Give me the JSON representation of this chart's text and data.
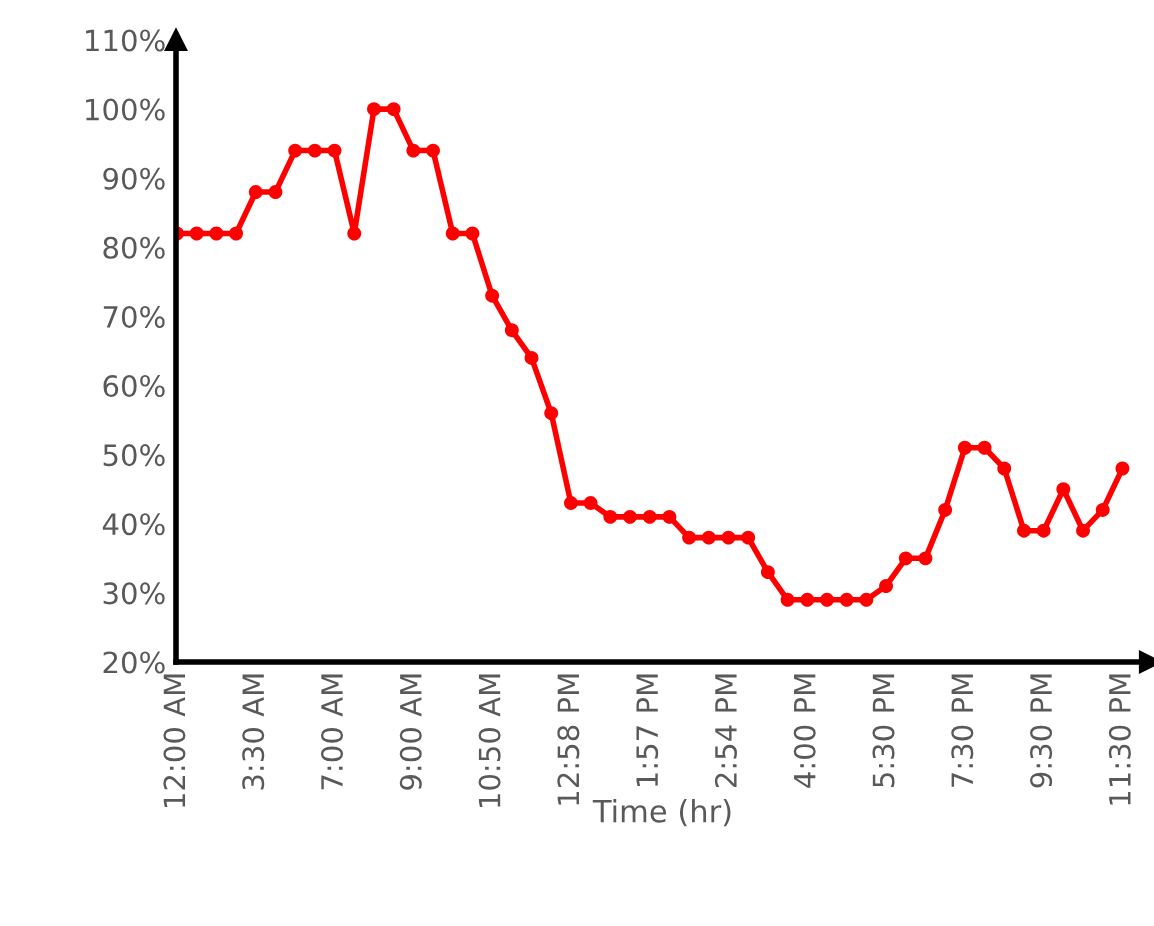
{
  "chart_data": {
    "type": "line",
    "xlabel": "Time (hr)",
    "categories": [
      "12:00 AM",
      null,
      null,
      null,
      "3:30 AM",
      null,
      null,
      null,
      "7:00 AM",
      null,
      null,
      null,
      "9:00 AM",
      null,
      null,
      null,
      "10:50 AM",
      null,
      null,
      null,
      "12:58 PM",
      null,
      null,
      null,
      "1:57 PM",
      null,
      null,
      null,
      "2:54 PM",
      null,
      null,
      null,
      "4:00 PM",
      null,
      null,
      null,
      "5:30 PM",
      null,
      null,
      null,
      "7:30 PM",
      null,
      null,
      null,
      "9:30 PM",
      null,
      null,
      null,
      "11:30 PM"
    ],
    "series": [
      {
        "color": "#ff0000",
        "values": [
          82,
          82,
          82,
          82,
          88,
          88,
          94,
          94,
          94,
          82,
          100,
          100,
          94,
          94,
          82,
          82,
          73,
          68,
          64,
          56,
          43,
          43,
          41,
          41,
          41,
          41,
          38,
          38,
          38,
          38,
          33,
          29,
          29,
          29,
          29,
          29,
          31,
          35,
          35,
          42,
          51,
          51,
          48,
          39,
          39,
          45,
          39,
          42,
          48
        ]
      }
    ],
    "ylim": [
      20,
      110
    ],
    "yticks": [
      {
        "value": 20,
        "label": "20%"
      },
      {
        "value": 30,
        "label": "30%"
      },
      {
        "value": 40,
        "label": "40%"
      },
      {
        "value": 50,
        "label": "50%"
      },
      {
        "value": 60,
        "label": "60%"
      },
      {
        "value": 70,
        "label": "70%"
      },
      {
        "value": 80,
        "label": "80%"
      },
      {
        "value": 90,
        "label": "90%"
      },
      {
        "value": 100,
        "label": "100%"
      },
      {
        "value": 110,
        "label": "110%"
      }
    ],
    "grid": false,
    "marker": "circle",
    "line_style": "solid"
  }
}
